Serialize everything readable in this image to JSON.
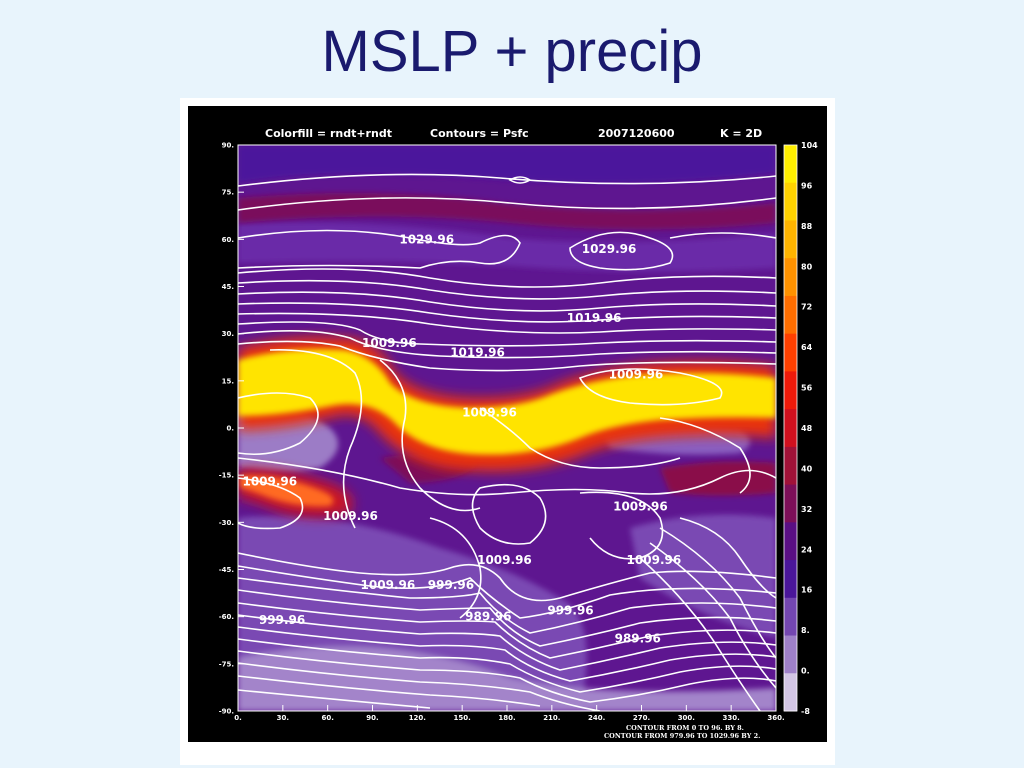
{
  "slide": {
    "title": "MSLP + precip"
  },
  "plot": {
    "header_colorfill": "Colorfill = rndt+rndt",
    "header_contours": "Contours = Psfc",
    "header_date": "2007120600",
    "header_level": "K =   2D",
    "footer_line1": "CONTOUR FROM 0 TO 96. BY 8.",
    "footer_line2": "CONTOUR FROM 979.96 TO 1029.96 BY 2."
  },
  "chart_data": {
    "type": "heatmap",
    "title": "",
    "xlabel": "",
    "ylabel": "",
    "x_ticks": [
      "0.",
      "30.",
      "60.",
      "90.",
      "120.",
      "150.",
      "180.",
      "210.",
      "240.",
      "270.",
      "300.",
      "330.",
      "360."
    ],
    "y_ticks": [
      "90.",
      "75.",
      "60.",
      "45.",
      "30.",
      "15.",
      "0.",
      "-15.",
      "-30.",
      "-45.",
      "-60.",
      "-75.",
      "-90."
    ],
    "xlim": [
      0,
      360
    ],
    "ylim": [
      -90,
      90
    ],
    "colorbar": {
      "levels": [
        "104",
        "96",
        "88",
        "80",
        "72",
        "64",
        "56",
        "48",
        "40",
        "32",
        "24",
        "16",
        "8.",
        "0.",
        "-8"
      ],
      "colors": [
        "#ffee00",
        "#ffd200",
        "#ffb400",
        "#ff9200",
        "#ff6e00",
        "#ff4000",
        "#ee1a0a",
        "#d0101e",
        "#a01238",
        "#7d0f58",
        "#5a0f84",
        "#4a169a",
        "#7346b0",
        "#9e80c8",
        "#d2c5e4"
      ]
    },
    "precip_regions": [
      {
        "lon": 45,
        "lat": 20,
        "value": 104
      },
      {
        "lon": 120,
        "lat": 5,
        "value": 104
      },
      {
        "lon": 200,
        "lat": 10,
        "value": 104
      },
      {
        "lon": 300,
        "lat": 15,
        "value": 104
      },
      {
        "lon": 25,
        "lat": -22,
        "value": 56
      },
      {
        "lon": 240,
        "lat": -8,
        "value": 40
      },
      {
        "lon": 180,
        "lat": 75,
        "value": 24
      },
      {
        "lon": 180,
        "lat": -60,
        "value": 16
      },
      {
        "lon": 30,
        "lat": 5,
        "value": 8
      }
    ],
    "contour_labels": [
      {
        "text": "1029.96",
        "lon": 108,
        "lat": 60
      },
      {
        "text": "1029.96",
        "lon": 230,
        "lat": 57
      },
      {
        "text": "1019.96",
        "lon": 220,
        "lat": 35
      },
      {
        "text": "1009.96",
        "lon": 83,
        "lat": 27
      },
      {
        "text": "1019.96",
        "lon": 142,
        "lat": 24
      },
      {
        "text": "1009.96",
        "lon": 248,
        "lat": 17
      },
      {
        "text": "1009.96",
        "lon": 150,
        "lat": 5
      },
      {
        "text": "1009.96",
        "lon": 3,
        "lat": -17
      },
      {
        "text": "1009.96",
        "lon": 57,
        "lat": -28
      },
      {
        "text": "1009.96",
        "lon": 251,
        "lat": -25
      },
      {
        "text": "1009.96",
        "lon": 160,
        "lat": -42
      },
      {
        "text": "1009.96",
        "lon": 260,
        "lat": -42
      },
      {
        "text": "1009.96",
        "lon": 82,
        "lat": -50
      },
      {
        "text": "999.96",
        "lon": 127,
        "lat": -50
      },
      {
        "text": "999.96",
        "lon": 207,
        "lat": -58
      },
      {
        "text": "999.96",
        "lon": 14,
        "lat": -61
      },
      {
        "text": "989.96",
        "lon": 152,
        "lat": -60
      },
      {
        "text": "989.96",
        "lon": 252,
        "lat": -67
      }
    ]
  }
}
